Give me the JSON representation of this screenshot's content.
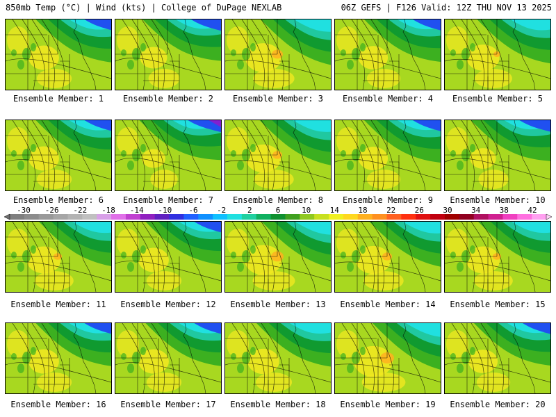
{
  "header": {
    "left": "850mb Temp (°C) | Wind (kts) | College of DuPage NEXLAB",
    "right": "06Z GEFS | F126 Valid: 12Z THU NOV 13 2025"
  },
  "members": [
    {
      "label": "Ensemble Member: 1",
      "warmth": 0.45
    },
    {
      "label": "Ensemble Member: 2",
      "warmth": 0.3
    },
    {
      "label": "Ensemble Member: 3",
      "warmth": 0.7
    },
    {
      "label": "Ensemble Member: 4",
      "warmth": 0.4
    },
    {
      "label": "Ensemble Member: 5",
      "warmth": 0.55
    },
    {
      "label": "Ensemble Member: 6",
      "warmth": 0.45
    },
    {
      "label": "Ensemble Member: 7",
      "warmth": 0.15
    },
    {
      "label": "Ensemble Member: 8",
      "warmth": 0.65
    },
    {
      "label": "Ensemble Member: 9",
      "warmth": 0.4
    },
    {
      "label": "Ensemble Member: 10",
      "warmth": 0.25
    },
    {
      "label": "Ensemble Member: 11",
      "warmth": 0.6
    },
    {
      "label": "Ensemble Member: 12",
      "warmth": 0.45
    },
    {
      "label": "Ensemble Member: 13",
      "warmth": 0.75
    },
    {
      "label": "Ensemble Member: 14",
      "warmth": 0.65
    },
    {
      "label": "Ensemble Member: 15",
      "warmth": 0.6
    },
    {
      "label": "Ensemble Member: 16",
      "warmth": 0.45
    },
    {
      "label": "Ensemble Member: 17",
      "warmth": 0.45
    },
    {
      "label": "Ensemble Member: 18",
      "warmth": 0.5
    },
    {
      "label": "Ensemble Member: 19",
      "warmth": 0.8
    },
    {
      "label": "Ensemble Member: 20",
      "warmth": 0.4
    }
  ],
  "colorbar": {
    "labels": [
      "-30",
      "-26",
      "-22",
      "-18",
      "-14",
      "-10",
      "-6",
      "-2",
      "2",
      "6",
      "10",
      "14",
      "18",
      "22",
      "26",
      "30",
      "34",
      "38",
      "42"
    ],
    "colors": [
      "#7f7f7f",
      "#8c8c8c",
      "#999999",
      "#a6a6a6",
      "#b3b3b3",
      "#c0c0c0",
      "#d8a0e8",
      "#e070e8",
      "#c040d0",
      "#9020c0",
      "#6020c0",
      "#3030e0",
      "#2060ff",
      "#1090ff",
      "#10c0ff",
      "#20e0e0",
      "#20d0a0",
      "#10b060",
      "#109030",
      "#40a020",
      "#90c820",
      "#c8e020",
      "#f0f020",
      "#ffd820",
      "#ffb020",
      "#ff9020",
      "#ff6020",
      "#ff3010",
      "#e01010",
      "#c00010",
      "#a00000",
      "#900020",
      "#b01060",
      "#d02090",
      "#f040c0",
      "#ff70e0",
      "#ffa0f0"
    ]
  },
  "palette": {
    "purple": "#8020d0",
    "blue": "#2050f0",
    "cyan": "#20e0e0",
    "teal": "#20c8a0",
    "green_dark": "#109a30",
    "green": "#3cb020",
    "yellow_green": "#a8d820",
    "yellow": "#f0e820",
    "orange": "#ffb020"
  }
}
